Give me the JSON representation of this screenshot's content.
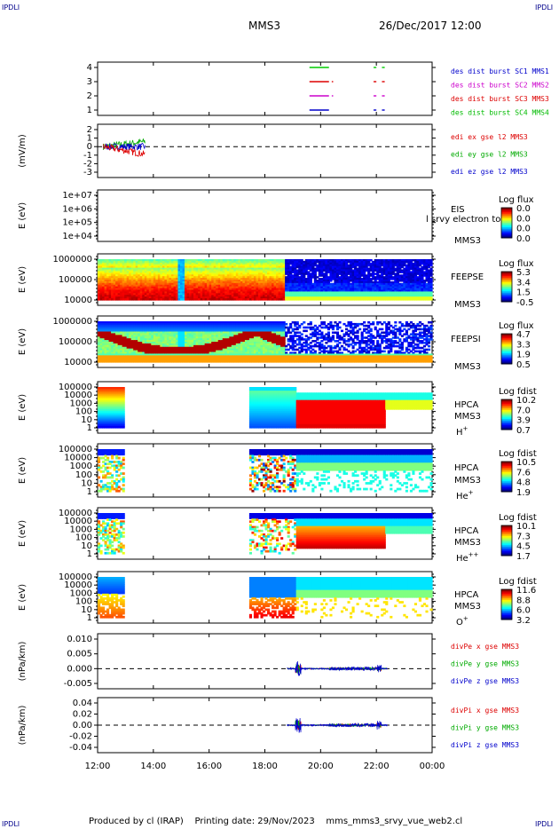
{
  "header": {
    "corner_label": "IPDLI",
    "title": "MMS3",
    "datetime": "26/Dec/2017 12:00"
  },
  "footer": {
    "produced": "Produced by cl (IRAP)",
    "printing": "Printing date: 29/Nov/2023",
    "filename": "mms_mms3_srvy_vue_web2.cl"
  },
  "chart_data": {
    "type": "heatmap",
    "x_ticks": [
      "12:00",
      "14:00",
      "16:00",
      "18:00",
      "20:00",
      "22:00",
      "00:00"
    ],
    "panels": [
      {
        "id": "burst",
        "type": "line",
        "yticks": [
          "4",
          "3",
          "2",
          "1"
        ],
        "ylabel": "",
        "legend": [
          {
            "label": "des dist burst SC1 MMS1",
            "color": "#0000cc"
          },
          {
            "label": "des dist burst SC2 MMS2",
            "color": "#cc00cc"
          },
          {
            "label": "des dist burst SC3 MMS3",
            "color": "#dd0000"
          },
          {
            "label": "des dist burst SC4 MMS4",
            "color": "#00bb00"
          }
        ],
        "series": [
          {
            "sc": 4,
            "intervals": [
              [
                19.6,
                20.3
              ],
              [
                21.9,
                22.0
              ],
              [
                22.2,
                22.3
              ]
            ],
            "color": "#00cc00"
          },
          {
            "sc": 3,
            "intervals": [
              [
                19.6,
                20.3
              ],
              [
                20.4,
                20.45
              ],
              [
                21.9,
                22.0
              ],
              [
                22.2,
                22.3
              ]
            ],
            "color": "#dd0000"
          },
          {
            "sc": 2,
            "intervals": [
              [
                19.6,
                20.3
              ],
              [
                20.4,
                20.45
              ],
              [
                21.9,
                22.0
              ],
              [
                22.2,
                22.3
              ]
            ],
            "color": "#cc00cc"
          },
          {
            "sc": 1,
            "intervals": [
              [
                19.6,
                20.3
              ],
              [
                21.9,
                22.0
              ],
              [
                22.2,
                22.3
              ]
            ],
            "color": "#0000cc"
          }
        ]
      },
      {
        "id": "edi",
        "type": "line",
        "yticks": [
          "2",
          "1",
          "0",
          "-1",
          "-2",
          "-3"
        ],
        "ylabel": "(mV/m)",
        "legend": [
          {
            "label": "edi ex gse l2 MMS3",
            "color": "#dd0000"
          },
          {
            "label": "edi ey gse l2 MMS3",
            "color": "#00aa00"
          },
          {
            "label": "edi ez gse l2 MMS3",
            "color": "#0000cc"
          }
        ],
        "data_range_hours": [
          12.2,
          13.7
        ]
      },
      {
        "id": "eis",
        "type": "heatmap",
        "yticks": [
          "1e+07",
          "1e+06",
          "1e+05",
          "1e+04"
        ],
        "ylabel": "E (eV)",
        "instrument": "EIS",
        "spacecraft": "MMS3",
        "extra_label": "l srvy electron to",
        "colorbar_title": "Log flux",
        "colorbar_ticks": [
          "0.0",
          "0.0",
          "0.0",
          "0.0"
        ]
      },
      {
        "id": "feepse",
        "type": "heatmap",
        "yticks": [
          "1000000",
          "100000",
          "10000"
        ],
        "ylabel": "E (eV)",
        "instrument": "FEEPSE",
        "spacecraft": "MMS3",
        "colorbar_title": "Log flux",
        "colorbar_ticks": [
          "5.3",
          "3.4",
          "1.5",
          "-0.5"
        ]
      },
      {
        "id": "feepsi",
        "type": "heatmap",
        "yticks": [
          "1000000",
          "100000",
          "10000"
        ],
        "ylabel": "E (eV)",
        "instrument": "FEEPSI",
        "spacecraft": "MMS3",
        "colorbar_title": "Log flux",
        "colorbar_ticks": [
          "4.7",
          "3.3",
          "1.9",
          "0.5"
        ]
      },
      {
        "id": "hpca_h",
        "type": "heatmap",
        "yticks": [
          "100000",
          "10000",
          "1000",
          "100",
          "10",
          "1"
        ],
        "ylabel": "E (eV)",
        "instrument": "HPCA",
        "spacecraft": "MMS3",
        "species": "H",
        "species_sup": "+",
        "colorbar_title": "Log fdist",
        "colorbar_ticks": [
          "10.2",
          "7.0",
          "3.9",
          "0.7"
        ]
      },
      {
        "id": "hpca_he1",
        "type": "heatmap",
        "yticks": [
          "100000",
          "10000",
          "1000",
          "100",
          "10",
          "1"
        ],
        "ylabel": "E (eV)",
        "instrument": "HPCA",
        "spacecraft": "MMS3",
        "species": "He",
        "species_sup": "+",
        "colorbar_title": "Log fdist",
        "colorbar_ticks": [
          "10.5",
          "7.6",
          "4.8",
          "1.9"
        ]
      },
      {
        "id": "hpca_he2",
        "type": "heatmap",
        "yticks": [
          "100000",
          "10000",
          "1000",
          "100",
          "10",
          "1"
        ],
        "ylabel": "E (eV)",
        "instrument": "HPCA",
        "spacecraft": "MMS3",
        "species": "He",
        "species_sup": "++",
        "colorbar_title": "Log fdist",
        "colorbar_ticks": [
          "10.1",
          "7.3",
          "4.5",
          "1.7"
        ]
      },
      {
        "id": "hpca_o",
        "type": "heatmap",
        "yticks": [
          "100000",
          "10000",
          "1000",
          "100",
          "10",
          "1"
        ],
        "ylabel": "E (eV)",
        "instrument": "HPCA",
        "spacecraft": "MMS3",
        "species": "O",
        "species_sup": "+",
        "colorbar_title": "Log fdist",
        "colorbar_ticks": [
          "11.6",
          "8.8",
          "6.0",
          "3.2"
        ]
      },
      {
        "id": "divpe",
        "type": "line",
        "yticks": [
          "0.010",
          "0.005",
          "0.000",
          "-0.005"
        ],
        "ylabel": "(nPa/km)",
        "legend": [
          {
            "label": "divPe x gse MMS3",
            "color": "#dd0000"
          },
          {
            "label": "divPe y gse MMS3",
            "color": "#00aa00"
          },
          {
            "label": "divPe z gse MMS3",
            "color": "#0000cc"
          }
        ]
      },
      {
        "id": "divpi",
        "type": "line",
        "yticks": [
          "0.04",
          "0.02",
          "0.00",
          "-0.02",
          "-0.04"
        ],
        "ylabel": "(nPa/km)",
        "legend": [
          {
            "label": "divPi x gse MMS3",
            "color": "#dd0000"
          },
          {
            "label": "divPi y gse MMS3",
            "color": "#00aa00"
          },
          {
            "label": "divPi z gse MMS3",
            "color": "#0000cc"
          }
        ]
      }
    ]
  }
}
